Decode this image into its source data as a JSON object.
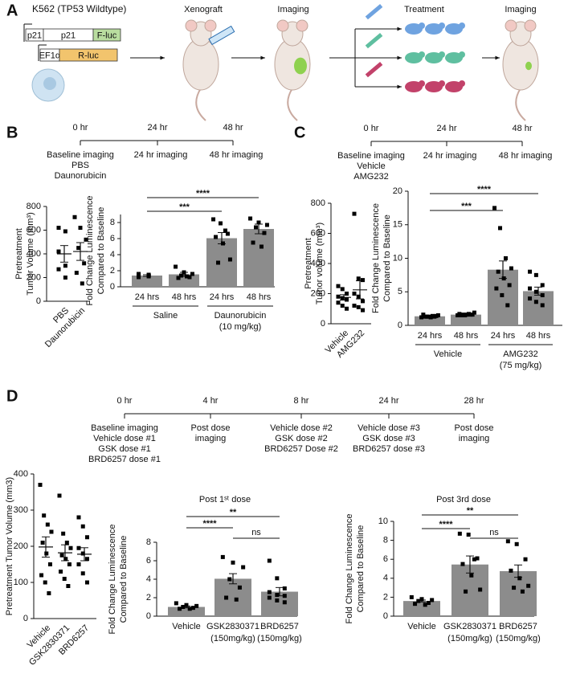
{
  "panels": [
    "A",
    "B",
    "C",
    "D"
  ],
  "panel_a": {
    "cell_line": "K562 (TP53 Wildtype)",
    "constructs": [
      [
        "p21",
        "p21",
        "F-luc"
      ],
      [
        "EF1α",
        "R-luc"
      ]
    ],
    "steps": [
      "Xenograft",
      "Imaging",
      "Treatment",
      "Imaging"
    ]
  },
  "timelines": [
    {
      "times": [
        "0 hr",
        "24 hr",
        "48 hr"
      ],
      "notes": [
        [
          "Baseline imaging",
          "PBS",
          "Daunorubicin"
        ],
        [
          "24 hr imaging"
        ],
        [
          "48 hr imaging"
        ]
      ]
    },
    {
      "times": [
        "0 hr",
        "24 hr",
        "48 hr"
      ],
      "notes": [
        [
          "Baseline imaging",
          "Vehicle",
          "AMG232"
        ],
        [
          "24 hr imaging"
        ],
        [
          "48 hr imaging"
        ]
      ]
    },
    {
      "times": [
        "0 hr",
        "4 hr",
        "8 hr",
        "24 hr",
        "28 hr"
      ],
      "notes": [
        [
          "Baseline imaging",
          "Vehicle dose #1",
          "GSK dose #1",
          "BRD6257 dose #1"
        ],
        [
          "Post dose",
          "imaging"
        ],
        [
          "Vehicle dose #2",
          "GSK dose #2",
          "BRD6257 Dose #2"
        ],
        [
          "Vehicle dose #3",
          "GSK dose #3",
          "BRD6257 dose #3"
        ],
        [
          "Post dose",
          "imaging"
        ]
      ]
    }
  ],
  "chart_data": [
    {
      "type": "dot",
      "ylabel": [
        "Pretreatment",
        "Tumor Volume (mm³)"
      ],
      "categories": [
        "PBS",
        "Daunorubicin"
      ],
      "points": [
        [
          620,
          590,
          420,
          300,
          270,
          200
        ],
        [
          710,
          620,
          520,
          450,
          320,
          240,
          150
        ]
      ],
      "means": [
        400,
        420
      ],
      "sems": [
        70,
        75
      ],
      "ylim": [
        0,
        800
      ],
      "yticks": [
        0,
        200,
        400,
        600,
        800
      ],
      "color": "#000000"
    },
    {
      "type": "bar",
      "ylabel": [
        "Fold Change Luminescence",
        "Compared to Baseline"
      ],
      "categories": [
        "24 hrs",
        "48 hrs",
        "24 hrs",
        "48 hrs"
      ],
      "groups": [
        [
          "Saline"
        ],
        [
          "Daunorubicin",
          "(10 mg/kg)"
        ]
      ],
      "points": [
        [
          1.6,
          1.5,
          1.4,
          1.3,
          1.2,
          1.4
        ],
        [
          2.5,
          1.8,
          1.6,
          1.4,
          1.2,
          1.1,
          1.3
        ],
        [
          8.4,
          7.9,
          6.6,
          6.2,
          5.4,
          3.4,
          3.0,
          7.0
        ],
        [
          8.5,
          8.0,
          7.7,
          7.4,
          6.7,
          5.5,
          5.0
        ]
      ],
      "means": [
        1.4,
        1.55,
        6.05,
        7.2
      ],
      "sems": [
        0.1,
        0.25,
        0.7,
        0.6
      ],
      "comparisons": [
        {
          "label": "***"
        },
        {
          "label": "****"
        }
      ],
      "ylim": [
        0,
        9
      ],
      "yticks": [
        0,
        2,
        4,
        6,
        8
      ],
      "color": "#8c8c8c"
    },
    {
      "type": "dot",
      "ylabel": [
        "Pretreatment",
        "Tumor volume (mm³)"
      ],
      "categories": [
        "Vehicle",
        "AMG232"
      ],
      "points": [
        [
          250,
          230,
          200,
          180,
          170,
          160,
          140,
          120,
          100
        ],
        [
          730,
          300,
          290,
          200,
          180,
          150,
          120,
          110,
          90
        ]
      ],
      "means": [
        175,
        225
      ],
      "sems": [
        18,
        60
      ],
      "ylim": [
        0,
        800
      ],
      "yticks": [
        0,
        200,
        400,
        600,
        800
      ],
      "color": "#000000"
    },
    {
      "type": "bar",
      "ylabel": [
        "Fold Change Luminescence",
        "Compared to Baseline"
      ],
      "categories": [
        "24 hrs",
        "48 hrs",
        "24 hrs",
        "48 hrs"
      ],
      "groups": [
        [
          "Vehicle"
        ],
        [
          "AMG232",
          "(75 mg/kg)"
        ]
      ],
      "points": [
        [
          1.2,
          1.3,
          1.4,
          1.5,
          1.3,
          1.2,
          1.4,
          1.6,
          1.3,
          1.3
        ],
        [
          1.5,
          1.6,
          1.7,
          1.9,
          1.5,
          1.6,
          1.6,
          1.7,
          1.5,
          1.6
        ],
        [
          17.5,
          14.5,
          10,
          8.5,
          8,
          7,
          6,
          5.5,
          4.5,
          3
        ],
        [
          8,
          7.5,
          6,
          5.5,
          5,
          4.5,
          4,
          3.5,
          3
        ]
      ],
      "means": [
        1.35,
        1.6,
        8.3,
        5.1
      ],
      "sems": [
        0.05,
        0.05,
        1.3,
        0.6
      ],
      "comparisons": [
        {
          "label": "***"
        },
        {
          "label": "****"
        }
      ],
      "ylim": [
        0,
        20
      ],
      "yticks": [
        0,
        5,
        10,
        15,
        20
      ],
      "color": "#8c8c8c"
    },
    {
      "type": "dot",
      "ylabel": [
        "Pretreatment Tumor Volume (mm3)"
      ],
      "categories": [
        "Vehicle",
        "GSK2830371",
        "BRD6257"
      ],
      "points": [
        [
          370,
          285,
          260,
          240,
          210,
          180,
          150,
          120,
          100,
          70
        ],
        [
          340,
          235,
          210,
          195,
          175,
          165,
          150,
          130,
          110,
          90
        ],
        [
          280,
          255,
          225,
          195,
          180,
          165,
          150,
          125,
          100
        ]
      ],
      "means": [
        198,
        182,
        178
      ],
      "sems": [
        28,
        22,
        18
      ],
      "ylim": [
        0,
        400
      ],
      "yticks": [
        0,
        100,
        200,
        300,
        400
      ],
      "color": "#000000"
    },
    {
      "type": "bar",
      "title": "Post 1ˢᵗ dose",
      "ylabel": [
        "Fold Change Luminescence",
        "Compared to Baseline"
      ],
      "categories": [
        "Vehicle",
        "GSK2830371",
        "BRD6257"
      ],
      "category_notes": [
        null,
        "(150mg/kg)",
        "(150mg/kg)"
      ],
      "points": [
        [
          1.4,
          1.2,
          1.1,
          1.0,
          0.9,
          0.8,
          0.8
        ],
        [
          6.4,
          5.8,
          5.3,
          4.0,
          3.1,
          2.0,
          1.8
        ],
        [
          6.0,
          4.1,
          3.0,
          2.6,
          2.3,
          2.2,
          2.0,
          1.7,
          1.5
        ]
      ],
      "means": [
        1.0,
        4.05,
        2.65
      ],
      "sems": [
        0.1,
        0.55,
        0.45
      ],
      "comparisons": [
        {
          "label": "****"
        },
        {
          "label": "**"
        },
        {
          "label": "ns"
        }
      ],
      "ylim": [
        0,
        8
      ],
      "yticks": [
        0,
        2,
        4,
        6,
        8
      ],
      "color": "#8c8c8c"
    },
    {
      "type": "bar",
      "title": "Post 3rd dose",
      "ylabel": [
        "Fold Change Luminescence",
        "Compared to Baseline"
      ],
      "categories": [
        "Vehicle",
        "GSK2830371",
        "BRD6257"
      ],
      "category_notes": [
        null,
        "(150mg/kg)",
        "(150mg/kg)"
      ],
      "points": [
        [
          2.0,
          1.8,
          1.7,
          1.6,
          1.4,
          1.3,
          1.2
        ],
        [
          8.7,
          8.6,
          6.1,
          5.5,
          4.3,
          2.8,
          2.6,
          6.0
        ],
        [
          7.9,
          7.6,
          6.0,
          4.8,
          4.0,
          3.2,
          3.0,
          2.6
        ]
      ],
      "means": [
        1.6,
        5.45,
        4.75
      ],
      "sems": [
        0.1,
        0.9,
        0.65
      ],
      "comparisons": [
        {
          "label": "****"
        },
        {
          "label": "**"
        },
        {
          "label": "ns"
        }
      ],
      "ylim": [
        0,
        10
      ],
      "yticks": [
        0,
        2,
        4,
        6,
        8,
        10
      ],
      "color": "#8c8c8c"
    }
  ]
}
